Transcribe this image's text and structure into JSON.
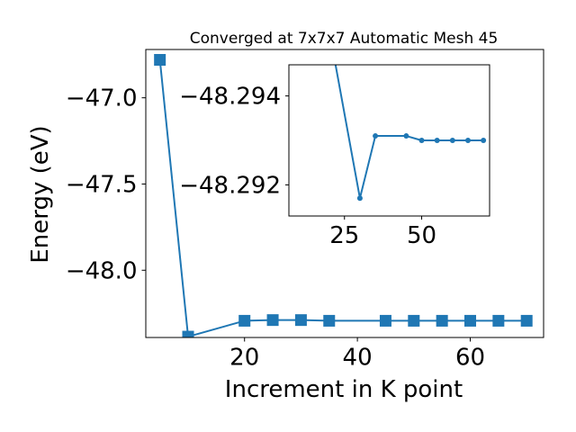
{
  "chart_data": [
    {
      "type": "line",
      "title": "Converged at 7x7x7 Automatic Mesh 45",
      "xlabel": "Increment in K point",
      "ylabel": "Energy (eV)",
      "xlim": [
        2.5,
        73
      ],
      "ylim": [
        -48.39,
        -46.72
      ],
      "xticks": [
        20,
        40,
        60
      ],
      "yticks": [
        -47.0,
        -47.5,
        -48.0
      ],
      "xtick_labels": [
        "20",
        "40",
        "60"
      ],
      "ytick_labels": [
        "−47.0",
        "−47.5",
        "−48.0"
      ],
      "marker": "square",
      "color": "#1f77b4",
      "grid": false,
      "series": [
        {
          "x": [
            5,
            10,
            20,
            25,
            30,
            35,
            45,
            50,
            55,
            60,
            65,
            70
          ],
          "y": [
            -46.78,
            -48.385,
            -48.293,
            -48.289,
            -48.289,
            -48.293,
            -48.293,
            -48.293,
            -48.293,
            -48.293,
            -48.293,
            -48.293
          ]
        }
      ]
    },
    {
      "type": "line",
      "role": "inset",
      "title": "",
      "xlabel": "",
      "ylabel": "",
      "xlim": [
        7,
        72
      ],
      "ylim": [
        -48.2913,
        -48.2947
      ],
      "y_inverted": true,
      "xticks": [
        25,
        50
      ],
      "yticks": [
        -48.294,
        -48.292
      ],
      "xtick_labels": [
        "25",
        "50"
      ],
      "ytick_labels": [
        "−48.294",
        "−48.292"
      ],
      "marker": "circle",
      "color": "#1f77b4",
      "grid": false,
      "series": [
        {
          "x": [
            20,
            30,
            35,
            45,
            50,
            55,
            60,
            65,
            70
          ],
          "y": [
            -48.2955,
            -48.2917,
            -48.2931,
            -48.2931,
            -48.293,
            -48.293,
            -48.293,
            -48.293,
            -48.293
          ]
        }
      ]
    }
  ]
}
